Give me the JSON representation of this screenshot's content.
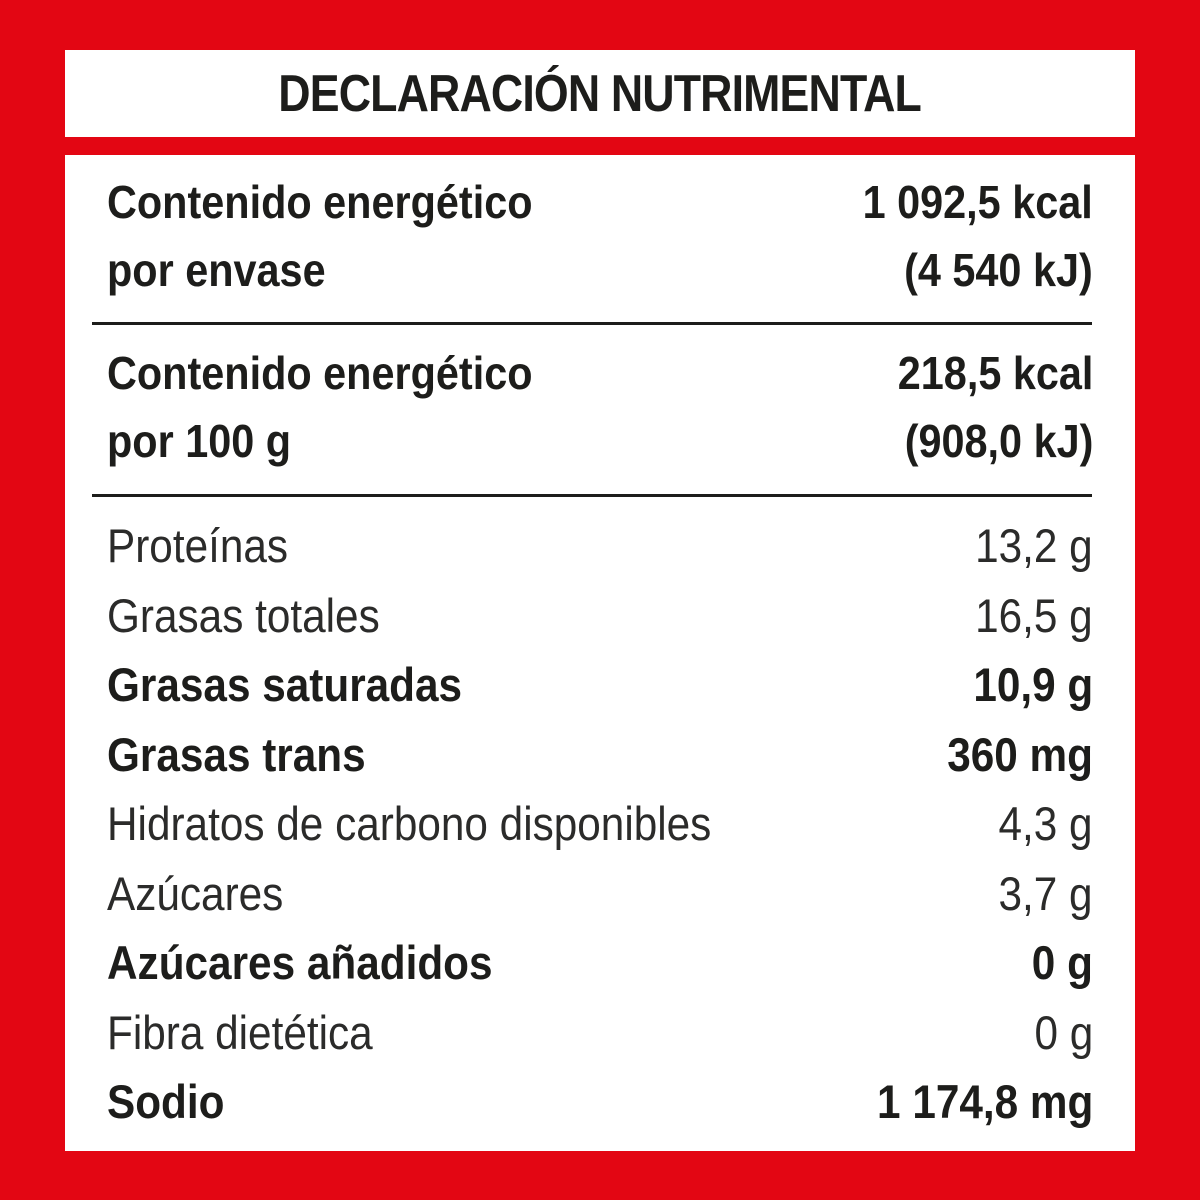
{
  "header": {
    "title": "DECLARACIÓN NUTRIMENTAL"
  },
  "energy": [
    {
      "label_line1": "Contenido energético",
      "label_line2": "por envase",
      "value_line1": "1 092,5 kcal",
      "value_line2": "(4 540 kJ)"
    },
    {
      "label_line1": "Contenido energético",
      "label_line2": "por 100 g",
      "value_line1": "218,5 kcal",
      "value_line2": "(908,0 kJ)"
    }
  ],
  "nutrients": [
    {
      "label": "Proteínas",
      "value": "13,2 g",
      "bold": false
    },
    {
      "label": "Grasas totales",
      "value": "16,5 g",
      "bold": false
    },
    {
      "label": "Grasas saturadas",
      "value": "10,9 g",
      "bold": true
    },
    {
      "label": "Grasas trans",
      "value": "360 mg",
      "bold": true
    },
    {
      "label": "Hidratos de carbono disponibles",
      "value": "4,3 g",
      "bold": false
    },
    {
      "label": "Azúcares",
      "value": "3,7 g",
      "bold": false
    },
    {
      "label": "Azúcares añadidos",
      "value": "0 g",
      "bold": true
    },
    {
      "label": "Fibra dietética",
      "value": "0 g",
      "bold": false
    },
    {
      "label": "Sodio",
      "value": "1 174,8 mg",
      "bold": true
    }
  ],
  "colors": {
    "background": "#e30613",
    "panel": "#ffffff",
    "text": "#1d1d1b"
  }
}
